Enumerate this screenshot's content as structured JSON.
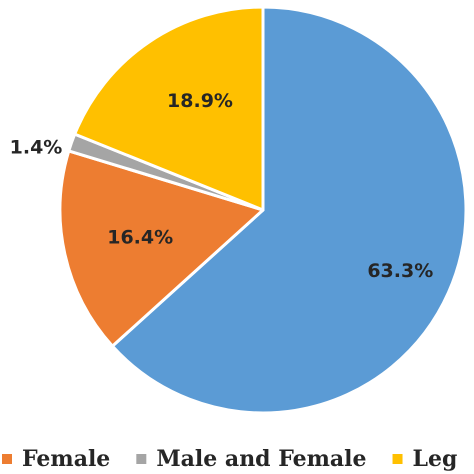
{
  "chart_data": {
    "type": "pie",
    "title": "",
    "slices": [
      {
        "label": "",
        "value": 63.3,
        "display": "63.3%",
        "color": "#5B9BD5"
      },
      {
        "label": "Female",
        "value": 16.4,
        "display": "16.4%",
        "color": "#ED7D31"
      },
      {
        "label": "Male and Female",
        "value": 1.4,
        "display": "1.4%",
        "color": "#A5A5A5"
      },
      {
        "label": "Leg",
        "value": 18.9,
        "display": "18.9%",
        "color": "#FFC000"
      }
    ],
    "legend": {
      "placement": "bottom",
      "entries": [
        {
          "label": "Female",
          "color": "#ED7D31"
        },
        {
          "label": "Male and Female",
          "color": "#A5A5A5"
        },
        {
          "label": "Leg",
          "color": "#FFC000"
        }
      ]
    },
    "start_angle_deg": 0,
    "direction": "clockwise"
  }
}
